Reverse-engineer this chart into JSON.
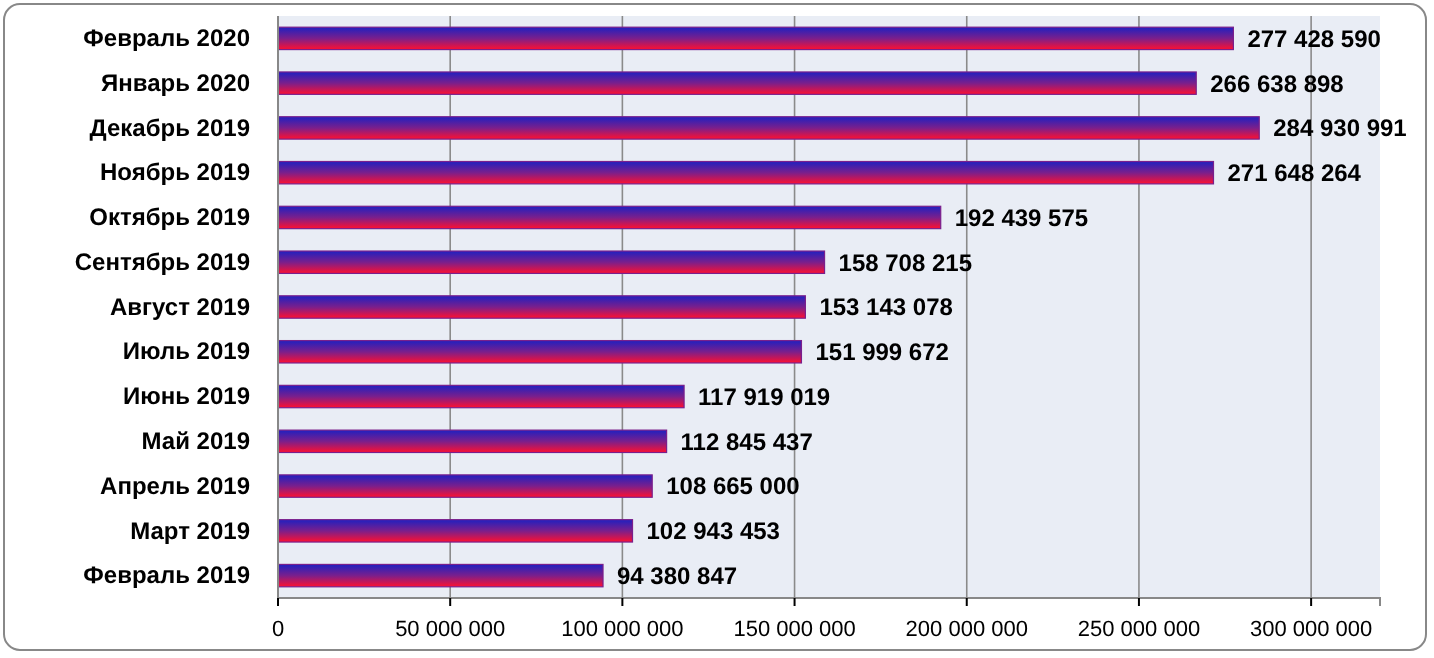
{
  "chart_data": {
    "type": "bar",
    "orientation": "horizontal",
    "categories": [
      "Февраль 2020",
      "Январь 2020",
      "Декабрь 2019",
      "Ноябрь 2019",
      "Октябрь 2019",
      "Сентябрь 2019",
      "Август 2019",
      "Июль 2019",
      "Июнь 2019",
      "Май 2019",
      "Апрель 2019",
      "Март 2019",
      "Февраль 2019"
    ],
    "values": [
      277428590,
      266638898,
      284930991,
      271648264,
      192439575,
      158708215,
      153143078,
      151999672,
      117919019,
      112845437,
      108665000,
      102943453,
      94380847
    ],
    "color": "#7a1f8c",
    "xlim": [
      0,
      320000000
    ],
    "xticks": [
      0,
      {
        "value": 50000000,
        "label": "50 000 000"
      },
      {
        "value": 100000000,
        "label": "100 000 000"
      },
      {
        "value": 150000000,
        "label": "150 000 000"
      },
      {
        "value": 200000000,
        "label": "200 000 000"
      },
      {
        "value": 250000000,
        "label": "250 000 000"
      },
      {
        "value": 300000000,
        "label": "300 000 000"
      }
    ],
    "grid": "x",
    "data_labels": true
  }
}
